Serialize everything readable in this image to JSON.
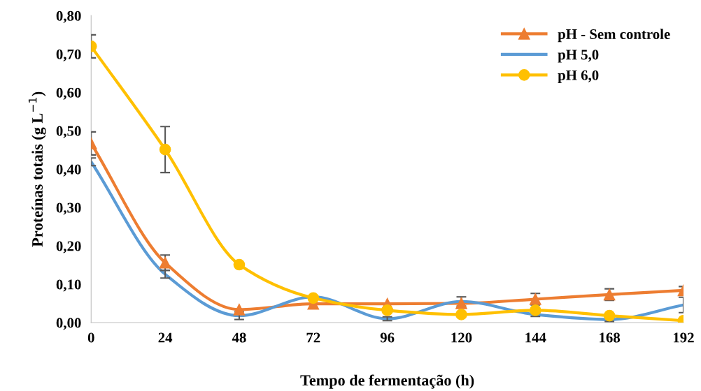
{
  "chart_data": {
    "type": "line",
    "xlabel": "Tempo de fermentação (h)",
    "ylabel": "Proteínas totais (g L$^{−1}$)",
    "x": [
      0,
      24,
      48,
      72,
      96,
      120,
      144,
      168,
      192
    ],
    "xlim": [
      0,
      192
    ],
    "xticks": [
      0,
      24,
      48,
      72,
      96,
      120,
      144,
      168,
      192
    ],
    "ylim": [
      0,
      0.8
    ],
    "yticks": [
      {
        "value": 0,
        "label": "0,00"
      },
      {
        "value": 0.1,
        "label": "0,10"
      },
      {
        "value": 0.2,
        "label": "0,20"
      },
      {
        "value": 0.3,
        "label": "0,30"
      },
      {
        "value": 0.4,
        "label": "0,40"
      },
      {
        "value": 0.5,
        "label": "0,50"
      },
      {
        "value": 0.6,
        "label": "0,60"
      },
      {
        "value": 0.7,
        "label": "0,70"
      },
      {
        "value": 0.8,
        "label": "0,80"
      }
    ],
    "grid": false,
    "legend": "top right",
    "series": [
      {
        "name": "pH - Sem controle",
        "color": "#ed7d31",
        "marker": "triangle",
        "values": [
          0.467,
          0.156,
          0.034,
          0.049,
          0.049,
          0.05,
          0.061,
          0.073,
          0.084
        ],
        "errors": [
          0.03,
          0.02,
          null,
          null,
          null,
          null,
          0.015,
          0.015,
          0.01
        ]
      },
      {
        "name": "pH 5,0",
        "color": "#5b9bd5",
        "marker": "none",
        "values": [
          0.419,
          0.126,
          0.018,
          0.067,
          0.01,
          0.055,
          0.021,
          0.008,
          0.046
        ],
        "errors": [
          0.01,
          0.01,
          0.01,
          null,
          0.005,
          0.012,
          0.005,
          0.005,
          0.02
        ]
      },
      {
        "name": "pH 6,0",
        "color": "#ffc000",
        "marker": "circle",
        "values": [
          0.72,
          0.451,
          0.151,
          0.064,
          0.032,
          0.021,
          0.032,
          0.018,
          0.005
        ],
        "errors": [
          0.03,
          0.06,
          null,
          null,
          null,
          null,
          null,
          null,
          null
        ]
      }
    ]
  }
}
